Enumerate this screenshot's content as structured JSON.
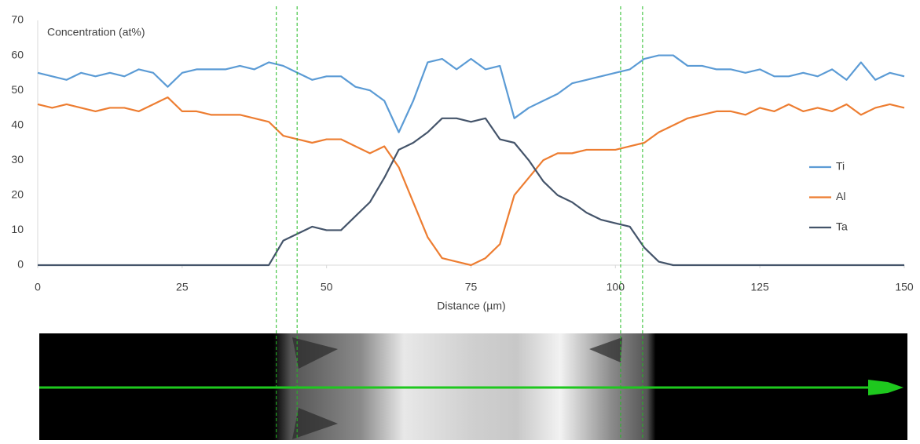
{
  "chart_data": {
    "type": "line",
    "y_label": "Concentration (at%)",
    "x_label": "Distance (µm)",
    "xlim": [
      0,
      150
    ],
    "xticks": [
      0,
      25,
      50,
      75,
      100,
      125,
      150
    ],
    "ylim": [
      0,
      70
    ],
    "yticks": [
      0,
      10,
      20,
      30,
      40,
      50,
      60,
      70
    ],
    "grid": false,
    "legend": "right",
    "reference_lines_x": [
      41.3,
      44.9,
      100.9,
      104.7
    ],
    "reference_color": "#22bb22",
    "x": [
      0,
      2.5,
      5,
      7.5,
      10,
      12.5,
      15,
      17.5,
      20,
      22.5,
      25,
      27.5,
      30,
      32.5,
      35,
      37.5,
      40,
      42.5,
      45,
      47.5,
      50,
      52.5,
      55,
      57.5,
      60,
      62.5,
      65,
      67.5,
      70,
      72.5,
      75,
      77.5,
      80,
      82.5,
      85,
      87.5,
      90,
      92.5,
      95,
      97.5,
      100,
      102.5,
      105,
      107.5,
      110,
      112.5,
      115,
      117.5,
      120,
      122.5,
      125,
      127.5,
      130,
      132.5,
      135,
      137.5,
      140,
      142.5,
      145,
      147.5,
      150
    ],
    "series": [
      {
        "name": "Ti",
        "color": "#5b9bd5",
        "values": [
          55,
          54,
          53,
          55,
          54,
          55,
          54,
          56,
          55,
          51,
          55,
          56,
          56,
          56,
          57,
          56,
          58,
          57,
          55,
          53,
          54,
          54,
          51,
          50,
          47,
          38,
          47,
          58,
          59,
          56,
          59,
          56,
          57,
          42,
          45,
          47,
          49,
          52,
          53,
          54,
          55,
          56,
          59,
          60,
          60,
          57,
          57,
          56,
          56,
          55,
          56,
          54,
          54,
          55,
          54,
          56,
          53,
          58,
          53,
          55,
          54
        ]
      },
      {
        "name": "Al",
        "color": "#ed7d31",
        "values": [
          46,
          45,
          46,
          45,
          44,
          45,
          45,
          44,
          46,
          48,
          44,
          44,
          43,
          43,
          43,
          42,
          41,
          37,
          36,
          35,
          36,
          36,
          34,
          32,
          34,
          28,
          18,
          8,
          2,
          1,
          0,
          2,
          6,
          20,
          25,
          30,
          32,
          32,
          33,
          33,
          33,
          34,
          35,
          38,
          40,
          42,
          43,
          44,
          44,
          43,
          45,
          44,
          46,
          44,
          45,
          44,
          46,
          43,
          45,
          46,
          45
        ]
      },
      {
        "name": "Ta",
        "color": "#44546a",
        "values": [
          0,
          0,
          0,
          0,
          0,
          0,
          0,
          0,
          0,
          0,
          0,
          0,
          0,
          0,
          0,
          0,
          0,
          7,
          9,
          11,
          10,
          10,
          14,
          18,
          25,
          33,
          35,
          38,
          42,
          42,
          41,
          42,
          36,
          35,
          30,
          24,
          20,
          18,
          15,
          13,
          12,
          11,
          5,
          1,
          0,
          0,
          0,
          0,
          0,
          0,
          0,
          0,
          0,
          0,
          0,
          0,
          0,
          0,
          0,
          0,
          0
        ]
      }
    ]
  }
}
